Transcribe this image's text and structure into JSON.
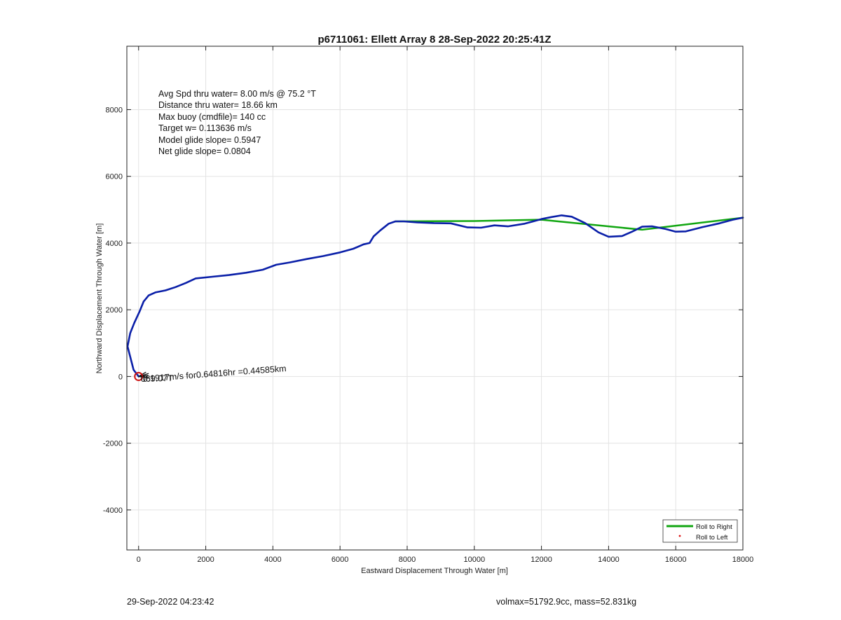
{
  "chart_data": {
    "type": "line",
    "title": "p6711061: Ellett Array 8 28-Sep-2022 20:25:41Z",
    "xlabel": "Eastward Displacement Through Water [m]",
    "ylabel": "Northward Displacement Through Water [m]",
    "xlim": [
      -350,
      18000
    ],
    "ylim": [
      -5200,
      9900
    ],
    "xticks": [
      0,
      2000,
      4000,
      6000,
      8000,
      10000,
      12000,
      14000,
      16000,
      18000
    ],
    "yticks": [
      -4000,
      -2000,
      0,
      2000,
      4000,
      6000,
      8000
    ],
    "grid": true,
    "legend_location": "lower right",
    "annotations": [
      "Avg Spd thru water=  8.00 m/s @  75.2 °T",
      "Distance thru water= 18.66 km",
      "Max buoy (cmdfile)= 140 cc",
      "Target w= 0.113636 m/s",
      "Model glide slope= 0.5947",
      "Net glide slope= 0.0804"
    ],
    "segment_label": "0.1917m/s for0.64816hr =0.44585km",
    "overlap_label": "069.07T",
    "series": [
      {
        "name": "",
        "color": "#0a1fa8",
        "x": [
          0,
          -150,
          -330,
          -250,
          -130,
          30,
          150,
          300,
          500,
          800,
          1100,
          1400,
          1700,
          2200,
          2700,
          3200,
          3700,
          4100,
          4500,
          5000,
          5500,
          6000,
          6400,
          6700,
          6880,
          7000,
          7200,
          7450,
          7650,
          7900,
          8300,
          8800,
          9300,
          9800,
          10200,
          10600,
          11000,
          11500,
          12000,
          12300,
          12600,
          12900,
          13300,
          13700,
          14000,
          14400,
          14700,
          15000,
          15300,
          15700,
          16000,
          16300,
          16800,
          17300,
          17700,
          18000
        ],
        "y": [
          0,
          200,
          900,
          1300,
          1600,
          1950,
          2250,
          2430,
          2520,
          2580,
          2680,
          2800,
          2940,
          2990,
          3040,
          3110,
          3200,
          3350,
          3420,
          3520,
          3610,
          3720,
          3830,
          3960,
          4000,
          4200,
          4380,
          4580,
          4650,
          4650,
          4620,
          4600,
          4590,
          4470,
          4460,
          4530,
          4500,
          4580,
          4720,
          4780,
          4830,
          4790,
          4600,
          4320,
          4190,
          4210,
          4340,
          4490,
          4500,
          4420,
          4340,
          4350,
          4480,
          4590,
          4700,
          4760
        ]
      },
      {
        "name": "Roll to Right",
        "color": "#11a611",
        "x": [
          7650,
          10000,
          12000,
          15000,
          18000
        ],
        "y": [
          4650,
          4660,
          4700,
          4400,
          4760
        ]
      },
      {
        "name": "Roll to Left",
        "color": "#dd1111",
        "x": [],
        "y": []
      }
    ],
    "marker": {
      "x": 0,
      "y": 0,
      "color": "#cc1111"
    },
    "marker_lines": [
      {
        "dx": 280,
        "dy": 30
      },
      {
        "dx": 300,
        "dy": 90
      },
      {
        "dx": 220,
        "dy": 130
      },
      {
        "dx": 330,
        "dy": -40
      }
    ]
  },
  "footer": {
    "left": "29-Sep-2022 04:23:42",
    "right": "volmax=51792.9cc, mass=52.831kg"
  }
}
